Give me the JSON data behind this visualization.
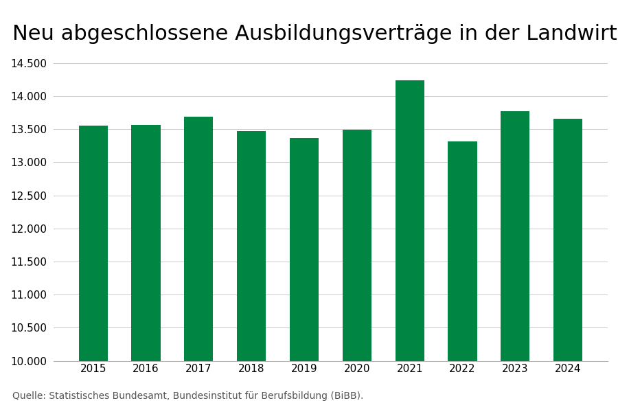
{
  "title": "Neu abgeschlossene Ausbildungsverträge in der Landwirtschaft",
  "source": "Quelle: Statistisches Bundesamt, Bundesinstitut für Berufsbildung (BiBB).",
  "years": [
    2015,
    2016,
    2017,
    2018,
    2019,
    2020,
    2021,
    2022,
    2023,
    2024
  ],
  "values": [
    13550,
    13560,
    13690,
    13470,
    13370,
    13490,
    14240,
    13320,
    13770,
    13660
  ],
  "bar_color": "#008542",
  "ylim": [
    10000,
    14500
  ],
  "ybase": 10000,
  "yticks": [
    10000,
    10500,
    11000,
    11500,
    12000,
    12500,
    13000,
    13500,
    14000,
    14500
  ],
  "background_color": "#ffffff",
  "title_fontsize": 22,
  "tick_fontsize": 11,
  "source_fontsize": 10,
  "bar_width": 0.55
}
